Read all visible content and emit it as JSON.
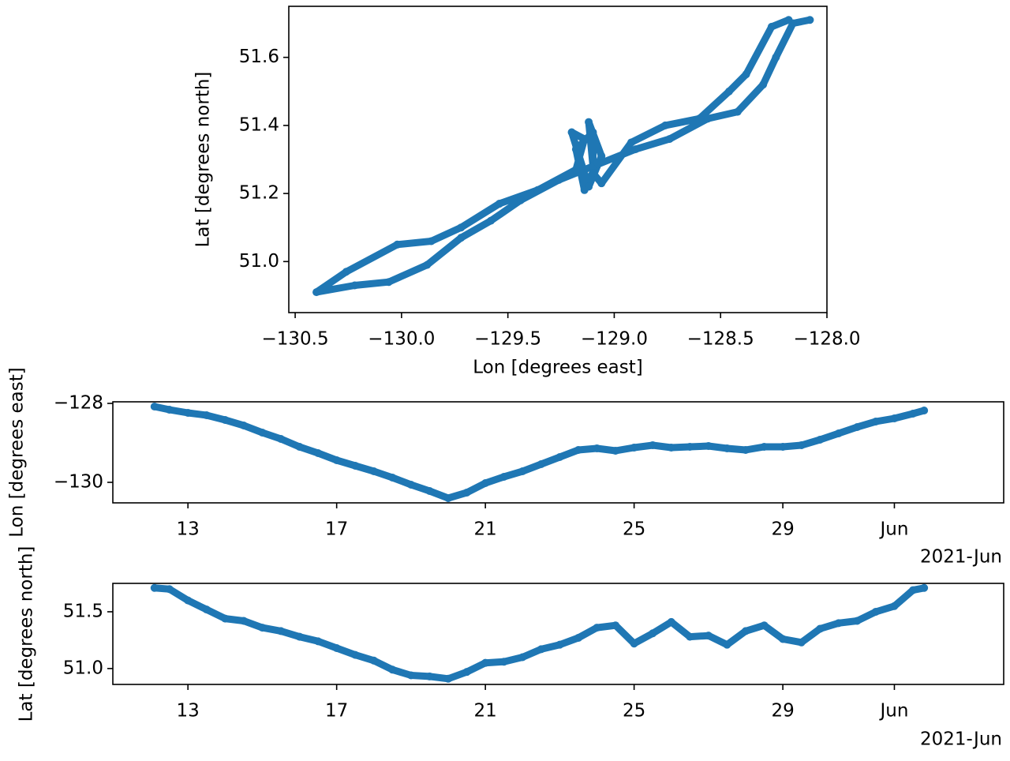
{
  "chart_data": [
    {
      "type": "scatter",
      "xlabel": "Lon [degrees east]",
      "ylabel": "Lat [degrees north]",
      "color": "#1f77b4",
      "x": [
        -128.08,
        -128.16,
        -128.24,
        -128.3,
        -128.42,
        -128.56,
        -128.74,
        -128.9,
        -129.1,
        -129.26,
        -129.44,
        -129.58,
        -129.72,
        -129.88,
        -130.06,
        -130.22,
        -130.4,
        -130.26,
        -130.02,
        -129.86,
        -129.72,
        -129.54,
        -129.36,
        -129.18,
        -129.14,
        -129.2,
        -129.12,
        -129.06,
        -129.12,
        -129.1,
        -129.08,
        -129.14,
        -129.18,
        -129.1,
        -129.1,
        -129.06,
        -128.92,
        -128.76,
        -128.6,
        -128.46,
        -128.38,
        -128.26,
        -128.18
      ],
      "values": [
        51.71,
        51.7,
        51.6,
        51.52,
        51.44,
        51.42,
        51.36,
        51.33,
        51.28,
        51.24,
        51.18,
        51.12,
        51.07,
        50.99,
        50.94,
        50.93,
        50.91,
        50.97,
        51.05,
        51.06,
        51.1,
        51.17,
        51.21,
        51.27,
        51.36,
        51.38,
        51.22,
        51.31,
        51.41,
        51.28,
        51.29,
        51.21,
        51.33,
        51.38,
        51.26,
        51.23,
        51.35,
        51.4,
        51.42,
        51.5,
        51.55,
        51.69,
        51.71
      ],
      "xlim": [
        -130.53,
        -128.0
      ],
      "ylim": [
        50.85,
        51.75
      ],
      "xticks": [
        {
          "value": -130.5,
          "label": "−130.5"
        },
        {
          "value": -130.0,
          "label": "−130.0"
        },
        {
          "value": -129.5,
          "label": "−129.5"
        },
        {
          "value": -129.0,
          "label": "−129.0"
        },
        {
          "value": -128.5,
          "label": "−128.5"
        },
        {
          "value": -128.0,
          "label": "−128.0"
        }
      ],
      "yticks": [
        {
          "value": 51.0,
          "label": "51.0"
        },
        51.2,
        51.4,
        51.6
      ]
    },
    {
      "type": "scatter",
      "ylabel": "Lon [degrees east]",
      "x_offset_label": "2021-Jun",
      "color": "#1f77b4",
      "x": [
        12.1,
        12.5,
        13,
        13.5,
        14,
        14.5,
        15,
        15.5,
        16,
        16.5,
        17,
        17.5,
        18,
        18.5,
        19,
        19.5,
        20,
        20.5,
        21,
        21.5,
        22,
        22.5,
        23,
        23.5,
        24,
        24.5,
        25,
        25.5,
        26,
        26.5,
        27,
        27.5,
        28,
        28.5,
        29,
        29.5,
        30,
        30.5,
        31,
        31.5,
        32,
        32.5,
        32.8
      ],
      "values": [
        -128.08,
        -128.16,
        -128.24,
        -128.3,
        -128.42,
        -128.56,
        -128.74,
        -128.9,
        -129.1,
        -129.26,
        -129.44,
        -129.58,
        -129.72,
        -129.88,
        -130.06,
        -130.22,
        -130.4,
        -130.26,
        -130.02,
        -129.86,
        -129.72,
        -129.54,
        -129.36,
        -129.18,
        -129.14,
        -129.2,
        -129.12,
        -129.06,
        -129.12,
        -129.1,
        -129.08,
        -129.14,
        -129.18,
        -129.1,
        -129.1,
        -129.06,
        -128.92,
        -128.76,
        -128.6,
        -128.46,
        -128.38,
        -128.26,
        -128.18
      ],
      "xlim": [
        10.98,
        34.94
      ],
      "ylim": [
        -130.52,
        -127.96
      ],
      "xticks": [
        13,
        17,
        21,
        25,
        29,
        {
          "value": 32,
          "label": "Jun"
        }
      ],
      "yticks": [
        {
          "value": -128,
          "label": "−128"
        },
        {
          "value": -130,
          "label": "−130"
        }
      ]
    },
    {
      "type": "scatter",
      "ylabel": "Lat [degrees north]",
      "x_offset_label": "2021-Jun",
      "color": "#1f77b4",
      "x": [
        12.1,
        12.5,
        13,
        13.5,
        14,
        14.5,
        15,
        15.5,
        16,
        16.5,
        17,
        17.5,
        18,
        18.5,
        19,
        19.5,
        20,
        20.5,
        21,
        21.5,
        22,
        22.5,
        23,
        23.5,
        24,
        24.5,
        25,
        25.5,
        26,
        26.5,
        27,
        27.5,
        28,
        28.5,
        29,
        29.5,
        30,
        30.5,
        31,
        31.5,
        32,
        32.5,
        32.8
      ],
      "values": [
        51.71,
        51.7,
        51.6,
        51.52,
        51.44,
        51.42,
        51.36,
        51.33,
        51.28,
        51.24,
        51.18,
        51.12,
        51.07,
        50.99,
        50.94,
        50.93,
        50.91,
        50.97,
        51.05,
        51.06,
        51.1,
        51.17,
        51.21,
        51.27,
        51.36,
        51.38,
        51.22,
        51.31,
        51.41,
        51.28,
        51.29,
        51.21,
        51.33,
        51.38,
        51.26,
        51.23,
        51.35,
        51.4,
        51.42,
        51.5,
        51.55,
        51.69,
        51.71
      ],
      "xlim": [
        10.98,
        34.94
      ],
      "ylim": [
        50.86,
        51.75
      ],
      "xticks": [
        13,
        17,
        21,
        25,
        29,
        {
          "value": 32,
          "label": "Jun"
        }
      ],
      "yticks": [
        {
          "value": 51.0,
          "label": "51.0"
        },
        51.5
      ]
    }
  ]
}
